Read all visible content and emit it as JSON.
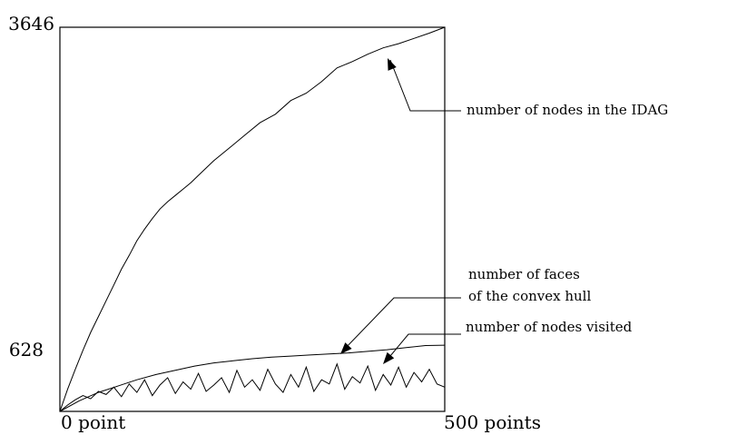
{
  "chart_data": {
    "type": "line",
    "title": "",
    "xlabel": "",
    "ylabel": "",
    "x_tick_labels": [
      "0 point",
      "500 points"
    ],
    "y_tick_labels": [
      "628",
      "3646"
    ],
    "xlim": [
      0,
      500
    ],
    "ylim": [
      0,
      3646
    ],
    "grid": false,
    "legend": "none",
    "series": [
      {
        "name": "number of nodes in the IDAG",
        "x": [
          0,
          10,
          20,
          30,
          40,
          50,
          60,
          70,
          80,
          90,
          100,
          110,
          120,
          130,
          140,
          150,
          160,
          170,
          180,
          190,
          200,
          220,
          240,
          260,
          280,
          300,
          320,
          340,
          360,
          380,
          400,
          420,
          440,
          460,
          480,
          500
        ],
        "y": [
          0,
          210,
          400,
          580,
          750,
          900,
          1050,
          1200,
          1350,
          1480,
          1620,
          1730,
          1830,
          1920,
          1990,
          2050,
          2110,
          2170,
          2240,
          2310,
          2380,
          2500,
          2620,
          2740,
          2820,
          2950,
          3020,
          3130,
          3260,
          3320,
          3390,
          3450,
          3490,
          3540,
          3590,
          3646
        ]
      },
      {
        "name": "number of faces of the convex hull",
        "x": [
          0,
          25,
          50,
          75,
          100,
          125,
          150,
          175,
          200,
          225,
          250,
          275,
          300,
          325,
          350,
          375,
          400,
          425,
          450,
          475,
          500
        ],
        "y": [
          0,
          100,
          180,
          240,
          300,
          350,
          390,
          430,
          460,
          480,
          500,
          515,
          525,
          535,
          545,
          555,
          570,
          585,
          605,
          625,
          628
        ]
      },
      {
        "name": "number of nodes visited",
        "x": [
          0,
          10,
          20,
          30,
          40,
          50,
          60,
          70,
          80,
          90,
          100,
          110,
          120,
          130,
          140,
          150,
          160,
          170,
          180,
          190,
          200,
          210,
          220,
          230,
          240,
          250,
          260,
          270,
          280,
          290,
          300,
          310,
          320,
          330,
          340,
          350,
          360,
          370,
          380,
          390,
          400,
          410,
          420,
          430,
          440,
          450,
          460,
          470,
          480,
          490,
          500
        ],
        "y": [
          0,
          60,
          110,
          150,
          120,
          190,
          160,
          230,
          140,
          260,
          180,
          300,
          150,
          250,
          320,
          170,
          280,
          210,
          360,
          190,
          250,
          320,
          180,
          390,
          230,
          300,
          200,
          400,
          260,
          180,
          350,
          230,
          420,
          190,
          300,
          260,
          450,
          210,
          330,
          270,
          430,
          200,
          350,
          250,
          420,
          230,
          370,
          280,
          400,
          260,
          230
        ]
      }
    ],
    "annotations": [
      {
        "text": "number of nodes in the IDAG"
      },
      {
        "text": "number of faces"
      },
      {
        "text": "of the convex hull"
      },
      {
        "text": "number of nodes visited"
      }
    ]
  }
}
